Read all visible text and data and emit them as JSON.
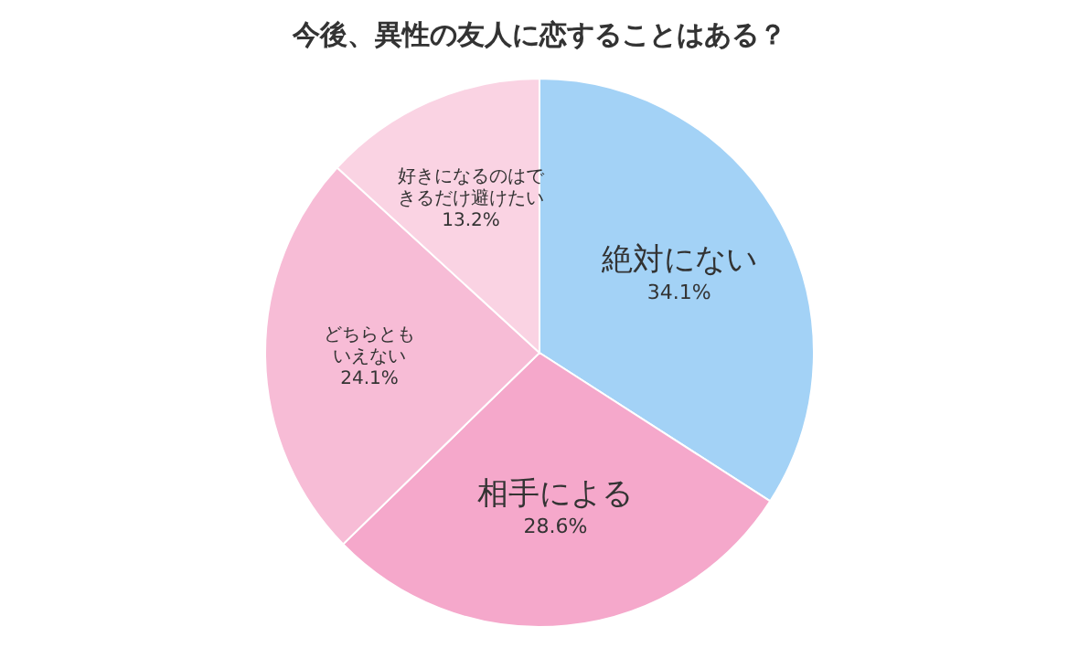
{
  "chart_data": {
    "type": "pie",
    "title": "今後、異性の友人に恋することはある？",
    "categories": [
      "絶対にない",
      "相手による",
      "どちらともいえない",
      "好きになるのはできるだけ避けたい"
    ],
    "value_labels": [
      "34.1%",
      "28.6%",
      "24.1%",
      "13.2%"
    ],
    "values": [
      34.1,
      28.6,
      24.1,
      13.2
    ],
    "colors": [
      "#a3d2f6",
      "#f5a8cb",
      "#f7bcd6",
      "#fad3e3"
    ]
  }
}
